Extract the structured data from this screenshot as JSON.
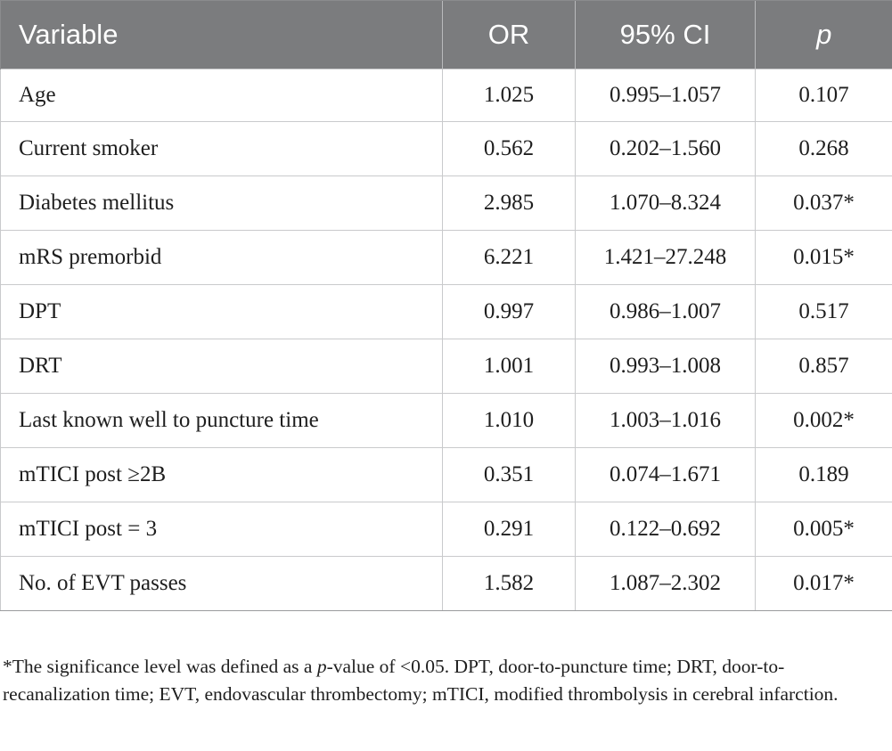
{
  "table": {
    "headers": {
      "variable": "Variable",
      "or": "OR",
      "ci": "95% CI",
      "p": "p"
    },
    "rows": [
      {
        "variable": "Age",
        "or": "1.025",
        "ci": "0.995–1.057",
        "p": "0.107"
      },
      {
        "variable": "Current smoker",
        "or": "0.562",
        "ci": "0.202–1.560",
        "p": "0.268"
      },
      {
        "variable": "Diabetes mellitus",
        "or": "2.985",
        "ci": "1.070–8.324",
        "p": "0.037*"
      },
      {
        "variable": "mRS premorbid",
        "or": "6.221",
        "ci": "1.421–27.248",
        "p": "0.015*"
      },
      {
        "variable": "DPT",
        "or": "0.997",
        "ci": "0.986–1.007",
        "p": "0.517"
      },
      {
        "variable": "DRT",
        "or": "1.001",
        "ci": "0.993–1.008",
        "p": "0.857"
      },
      {
        "variable": "Last known well to puncture time",
        "or": "1.010",
        "ci": "1.003–1.016",
        "p": "0.002*"
      },
      {
        "variable": "mTICI post ≥2B",
        "or": "0.351",
        "ci": "0.074–1.671",
        "p": "0.189"
      },
      {
        "variable": "mTICI post = 3",
        "or": "0.291",
        "ci": "0.122–0.692",
        "p": "0.005*"
      },
      {
        "variable": "No. of EVT passes",
        "or": "1.582",
        "ci": "1.087–2.302",
        "p": "0.017*"
      }
    ]
  },
  "footnote": {
    "part1": "*The significance level was defined as a ",
    "italic": "p",
    "part2": "-value of <0.05. DPT, door-to-puncture time; DRT, door-to-recanalization time; EVT, endovascular thrombectomy; mTICI, modified thrombolysis in cerebral infarction."
  }
}
